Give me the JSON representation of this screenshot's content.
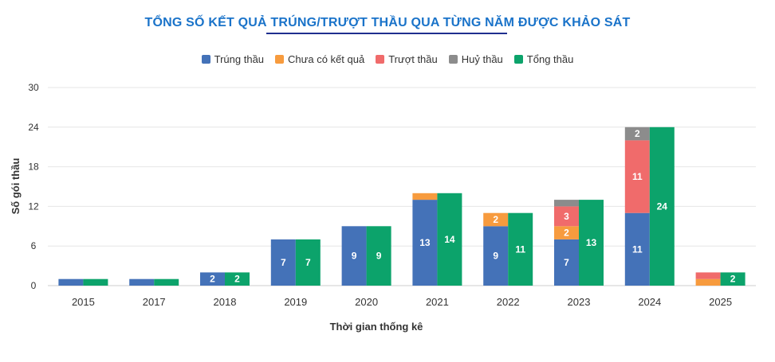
{
  "chart_data": {
    "type": "bar",
    "title": "TỔNG SỐ KẾT QUẢ TRÚNG/TRƯỢT THẦU QUA TỪNG NĂM ĐƯỢC KHẢO SÁT",
    "xlabel": "Thời gian thống kê",
    "ylabel": "Số gói thầu",
    "ylim": [
      0,
      30
    ],
    "yticks": [
      "0",
      "6",
      "12",
      "18",
      "24",
      "30"
    ],
    "grid": true,
    "legend_position": "top",
    "categories": [
      "2015",
      "2017",
      "2018",
      "2019",
      "2020",
      "2021",
      "2022",
      "2023",
      "2024",
      "2025"
    ],
    "stacked_series": [
      {
        "name": "Trúng thầu",
        "color": "#4472b8",
        "values": [
          1,
          1,
          2,
          7,
          9,
          13,
          9,
          7,
          11,
          0
        ],
        "labels": [
          "",
          "",
          "2",
          "7",
          "9",
          "13",
          "9",
          "7",
          "11",
          ""
        ]
      },
      {
        "name": "Chưa có kết quả",
        "color": "#f79b3e",
        "values": [
          0,
          0,
          0,
          0,
          0,
          1,
          2,
          2,
          0,
          1
        ],
        "labels": [
          "",
          "",
          "",
          "",
          "",
          "",
          "2",
          "2",
          "",
          ""
        ]
      },
      {
        "name": "Trượt thầu",
        "color": "#f06b6b",
        "values": [
          0,
          0,
          0,
          0,
          0,
          0,
          0,
          3,
          11,
          1
        ],
        "labels": [
          "",
          "",
          "",
          "",
          "",
          "",
          "",
          "3",
          "11",
          ""
        ]
      },
      {
        "name": "Huỷ thầu",
        "color": "#8c8c8c",
        "values": [
          0,
          0,
          0,
          0,
          0,
          0,
          0,
          1,
          2,
          0
        ],
        "labels": [
          "",
          "",
          "",
          "",
          "",
          "",
          "",
          "",
          "2",
          ""
        ]
      }
    ],
    "total_series": {
      "name": "Tổng thầu",
      "color": "#0ca36b",
      "values": [
        1,
        1,
        2,
        7,
        9,
        14,
        11,
        13,
        24,
        2
      ],
      "labels": [
        "",
        "",
        "2",
        "7",
        "9",
        "14",
        "11",
        "13",
        "24",
        "2"
      ]
    }
  }
}
